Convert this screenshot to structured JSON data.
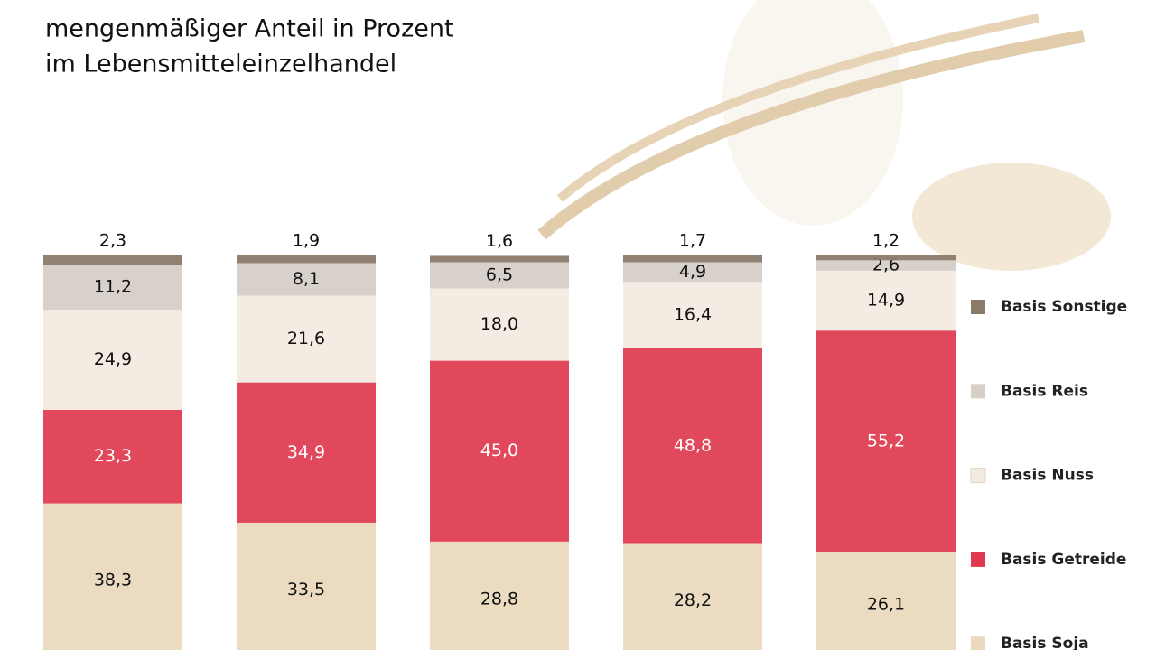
{
  "chart_data": {
    "type": "stacked-bar",
    "title": "mengenmäßiger Anteil in Prozent",
    "subtitle": "im Lebensmitteleinzelhandel",
    "categories": [
      null,
      null,
      null,
      null,
      null
    ],
    "ylim": [
      0,
      100
    ],
    "series": [
      {
        "name": "Basis Soja",
        "color": "#ead9bd",
        "values": [
          38.3,
          33.5,
          28.8,
          28.2,
          26.1
        ],
        "value_labels": [
          "38,3",
          "33,5",
          "28,8",
          "28,2",
          "26,1"
        ]
      },
      {
        "name": "Basis Getreide",
        "color": "#e0384e",
        "values": [
          23.3,
          34.9,
          45.0,
          48.8,
          55.2
        ],
        "value_labels": [
          "23,3",
          "34,9",
          "45,0",
          "48,8",
          "55,2"
        ]
      },
      {
        "name": "Basis Nuss",
        "color": "#f3ebe0",
        "values": [
          24.9,
          21.6,
          18.0,
          16.4,
          14.9
        ],
        "value_labels": [
          "24,9",
          "21,6",
          "18,0",
          "16,4",
          "14,9"
        ]
      },
      {
        "name": "Basis Reis",
        "color": "#d6cfc8",
        "values": [
          11.2,
          8.1,
          6.5,
          4.9,
          2.6
        ],
        "value_labels": [
          "11,2",
          "8,1",
          "6,5",
          "4,9",
          "2,6"
        ]
      },
      {
        "name": "Basis Sonstige",
        "color": "#8a7a6a",
        "values": [
          2.3,
          1.9,
          1.6,
          1.7,
          1.2
        ],
        "value_labels": [
          "2,3",
          "1,9",
          "1,6",
          "1,7",
          "1,2"
        ]
      }
    ]
  }
}
